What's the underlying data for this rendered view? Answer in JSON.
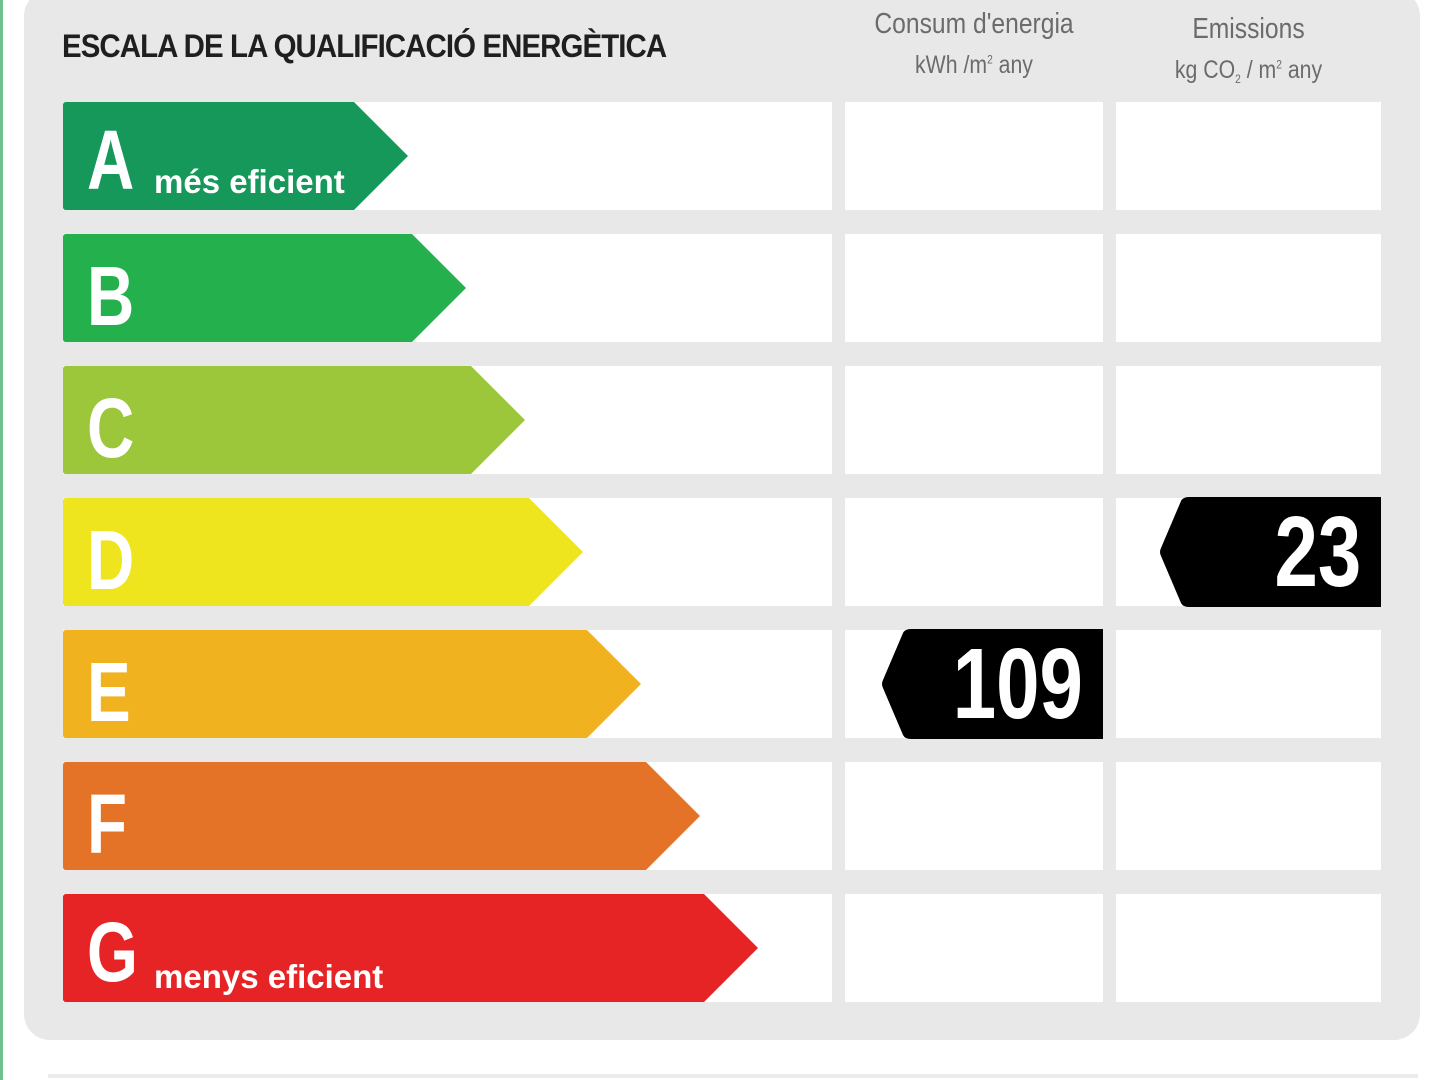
{
  "chart_data": {
    "type": "table",
    "title": "ESCALA DE LA QUALIFICACIÓ ENERGÈTICA",
    "columns": [
      {
        "key": "consum",
        "name": "Consum d'energia",
        "unit": "kWh /m² any"
      },
      {
        "key": "emissions",
        "name": "Emissions",
        "unit": "kg CO₂ / m² any"
      }
    ],
    "bands": [
      {
        "letter": "A",
        "label": "més eficient",
        "color": "#15985a"
      },
      {
        "letter": "B",
        "label": "",
        "color": "#25b04e"
      },
      {
        "letter": "C",
        "label": "",
        "color": "#9dc73b"
      },
      {
        "letter": "D",
        "label": "",
        "color": "#efe51e"
      },
      {
        "letter": "E",
        "label": "",
        "color": "#f0b21f"
      },
      {
        "letter": "F",
        "label": "",
        "color": "#e47328"
      },
      {
        "letter": "G",
        "label": "menys eficient",
        "color": "#e72425"
      }
    ],
    "ratings": [
      {
        "column": "consum",
        "band": "E",
        "value": 109
      },
      {
        "column": "emissions",
        "band": "D",
        "value": 23
      }
    ]
  },
  "colors": {
    "panel": "#e8e8e8",
    "cell": "#ffffff",
    "title": "#1f1f1f",
    "column_header": "#6b6b6b",
    "tag": "#000000",
    "tag_text": "#ffffff"
  }
}
